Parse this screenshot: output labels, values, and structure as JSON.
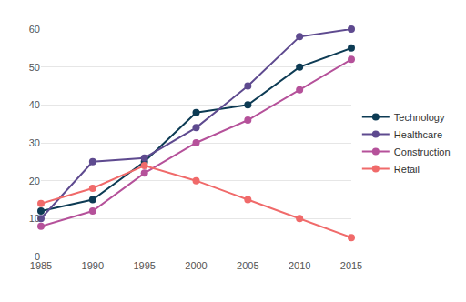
{
  "chart_data": {
    "type": "line",
    "x": [
      1985,
      1990,
      1995,
      2000,
      2005,
      2010,
      2015
    ],
    "series": [
      {
        "name": "Technology",
        "color": "#0d3b54",
        "values": [
          12,
          15,
          25,
          38,
          40,
          50,
          55
        ]
      },
      {
        "name": "Healthcare",
        "color": "#5e4a8f",
        "values": [
          10,
          25,
          26,
          34,
          45,
          58,
          60
        ]
      },
      {
        "name": "Construction",
        "color": "#b5519a",
        "values": [
          8,
          12,
          22,
          30,
          36,
          44,
          52
        ]
      },
      {
        "name": "Retail",
        "color": "#f06a6a",
        "values": [
          14,
          18,
          24,
          20,
          15,
          10,
          5
        ]
      }
    ],
    "xlim": [
      1985,
      2015
    ],
    "xticks": [
      1985,
      1990,
      1995,
      2000,
      2005,
      2010,
      2015
    ],
    "ylim": [
      0,
      60
    ],
    "yticks": [
      0,
      10,
      20,
      30,
      40,
      50,
      60
    ],
    "grid": true,
    "legend": "right",
    "marker": "circle"
  }
}
